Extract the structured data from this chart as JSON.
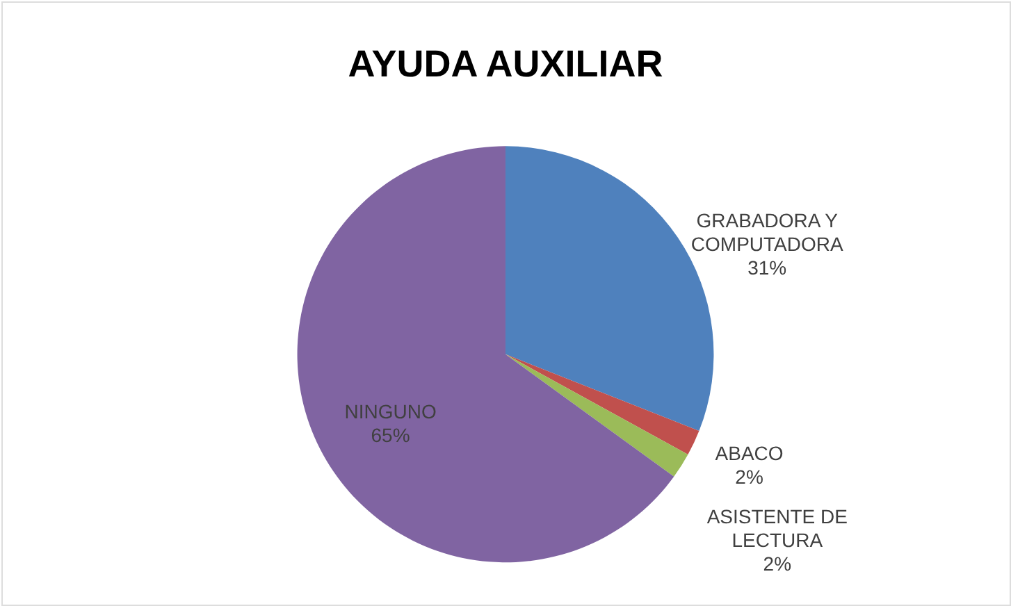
{
  "chart_data": {
    "type": "pie",
    "title": "AYUDA AUXILIAR",
    "categories": [
      "GRABADORA Y COMPUTADORA",
      "ABACO",
      "ASISTENTE DE LECTURA",
      "NINGUNO"
    ],
    "values": [
      31,
      2,
      2,
      65
    ],
    "colors": [
      "#4f81bd",
      "#c0504d",
      "#9bbb59",
      "#8064a2"
    ],
    "value_labels": [
      "31%",
      "2%",
      "2%",
      "65%"
    ]
  }
}
